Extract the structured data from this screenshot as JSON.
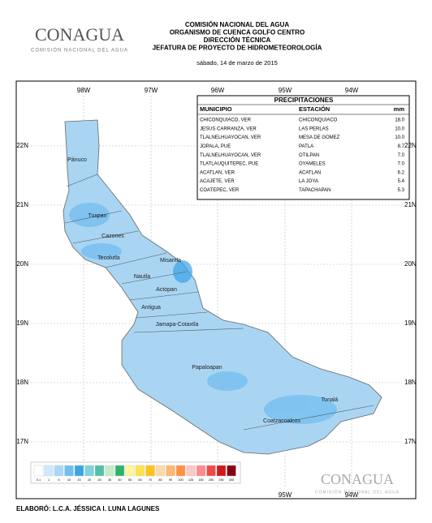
{
  "header": {
    "logo": "CONAGUA",
    "logo_sub": "COMISIÓN NACIONAL DEL AGUA",
    "lines": [
      "COMISIÓN NACIONAL DEL AGUA",
      "ORGANISMO DE CUENCA GOLFO CENTRO",
      "DIRECCIÓN TÉCNICA",
      "JEFATURA DE PROYECTO DE HIDROMETEOROLOGÍA"
    ],
    "date": "sábado, 14 de marzo de 2015"
  },
  "map": {
    "lon_labels": [
      "98W",
      "97W",
      "96W",
      "95W",
      "94W"
    ],
    "lat_labels": [
      "22N",
      "21N",
      "20N",
      "19N",
      "18N",
      "17N"
    ],
    "regions": [
      "Pánuco",
      "Tuxpan",
      "Cazones",
      "Tecolutla",
      "Misantla",
      "Nautla",
      "Actopan",
      "Antigua",
      "Jamapa-Cotaxtla",
      "Papaloapan",
      "Coatzacoalcos",
      "Tonalá"
    ]
  },
  "table": {
    "title": "PRECIPITACIONES",
    "columns": [
      "MUNICIPIO",
      "ESTACIÓN",
      "mm"
    ],
    "rows": [
      [
        "CHICONQUIACO, VER",
        "CHICONQUIACO",
        "18.0"
      ],
      [
        "JESUS CARRANZA, VER",
        "LAS PERLAS",
        "10.0"
      ],
      [
        "TLALNELHUAYOCAN, VER",
        "MESA DE GOMEZ",
        "10.0"
      ],
      [
        "JOPALA, PUE",
        "PATLA",
        "8.7"
      ],
      [
        "TLALNELHUAYOCAN, VER",
        "OTILPAN",
        "7.0"
      ],
      [
        "TLATLAUQUITEPEC, PUE",
        "OYAMELES",
        "7.0"
      ],
      [
        "ACATLAN, VER",
        "ACATLAN",
        "6.2"
      ],
      [
        "ACAJETE, VER",
        "LA JOYA",
        "5.4"
      ],
      [
        "COATEPEC, VER",
        "TAPACHAPAN",
        "5.3"
      ]
    ]
  },
  "legend": {
    "labels": [
      "0.1",
      "1",
      "5",
      "10",
      "15",
      "20",
      "25",
      "30",
      "40",
      "50",
      "60",
      "70",
      "80",
      "90",
      "100",
      "125",
      "150",
      "200",
      "250",
      "300"
    ],
    "colors": [
      "#ffffff",
      "#cde9fb",
      "#a6d8f7",
      "#6fc0f0",
      "#3ba3e6",
      "#7fd3d9",
      "#4fc1a8",
      "#c5ecc5",
      "#2fb36b",
      "#fff59a",
      "#ffe34d",
      "#ffc21a",
      "#ffd9a8",
      "#ffb870",
      "#ff9040",
      "#ffc6c6",
      "#ff8a8a",
      "#f04848",
      "#d01818",
      "#8a0010"
    ]
  },
  "footer": "ELABORÓ: L.C.A. JÉSSICA I. LUNA LAGUNES"
}
